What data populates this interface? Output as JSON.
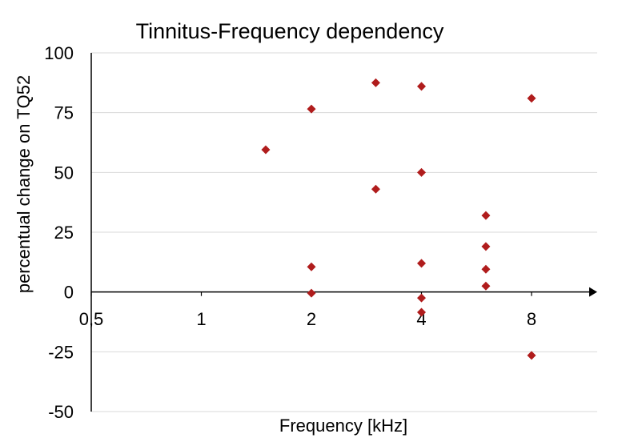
{
  "chart_data": {
    "type": "scatter",
    "title": "Tinnitus-Frequency dependency",
    "xlabel": "Frequency [kHz]",
    "ylabel": "percentual change on TQ52",
    "x_scale": "log2",
    "xlim": [
      0.5,
      11.3
    ],
    "ylim": [
      -50,
      100
    ],
    "x_ticks": [
      {
        "value": 0.5,
        "label": "0,5"
      },
      {
        "value": 1,
        "label": "1"
      },
      {
        "value": 2,
        "label": "2"
      },
      {
        "value": 4,
        "label": "4"
      },
      {
        "value": 8,
        "label": "8"
      }
    ],
    "y_ticks": [
      {
        "value": 100,
        "label": "100"
      },
      {
        "value": 75,
        "label": "75"
      },
      {
        "value": 50,
        "label": "50"
      },
      {
        "value": 25,
        "label": "25"
      },
      {
        "value": 0,
        "label": "0"
      },
      {
        "value": -25,
        "label": "-25"
      },
      {
        "value": -50,
        "label": "-50"
      }
    ],
    "grid": true,
    "legend": "none",
    "marker_color": "#B01C1C",
    "series": [
      {
        "points": [
          {
            "x": 1.5,
            "y": 59.5
          },
          {
            "x": 2,
            "y": 76.5
          },
          {
            "x": 2,
            "y": 10.5
          },
          {
            "x": 2,
            "y": -0.5
          },
          {
            "x": 3,
            "y": 87.5
          },
          {
            "x": 3,
            "y": 43
          },
          {
            "x": 4,
            "y": 86
          },
          {
            "x": 4,
            "y": 50
          },
          {
            "x": 4,
            "y": 12
          },
          {
            "x": 4,
            "y": -2.5
          },
          {
            "x": 4,
            "y": -8.5
          },
          {
            "x": 6,
            "y": 32
          },
          {
            "x": 6,
            "y": 19
          },
          {
            "x": 6,
            "y": 9.5
          },
          {
            "x": 6,
            "y": 2.5
          },
          {
            "x": 8,
            "y": 81
          },
          {
            "x": 8,
            "y": -26.5
          }
        ]
      }
    ]
  }
}
